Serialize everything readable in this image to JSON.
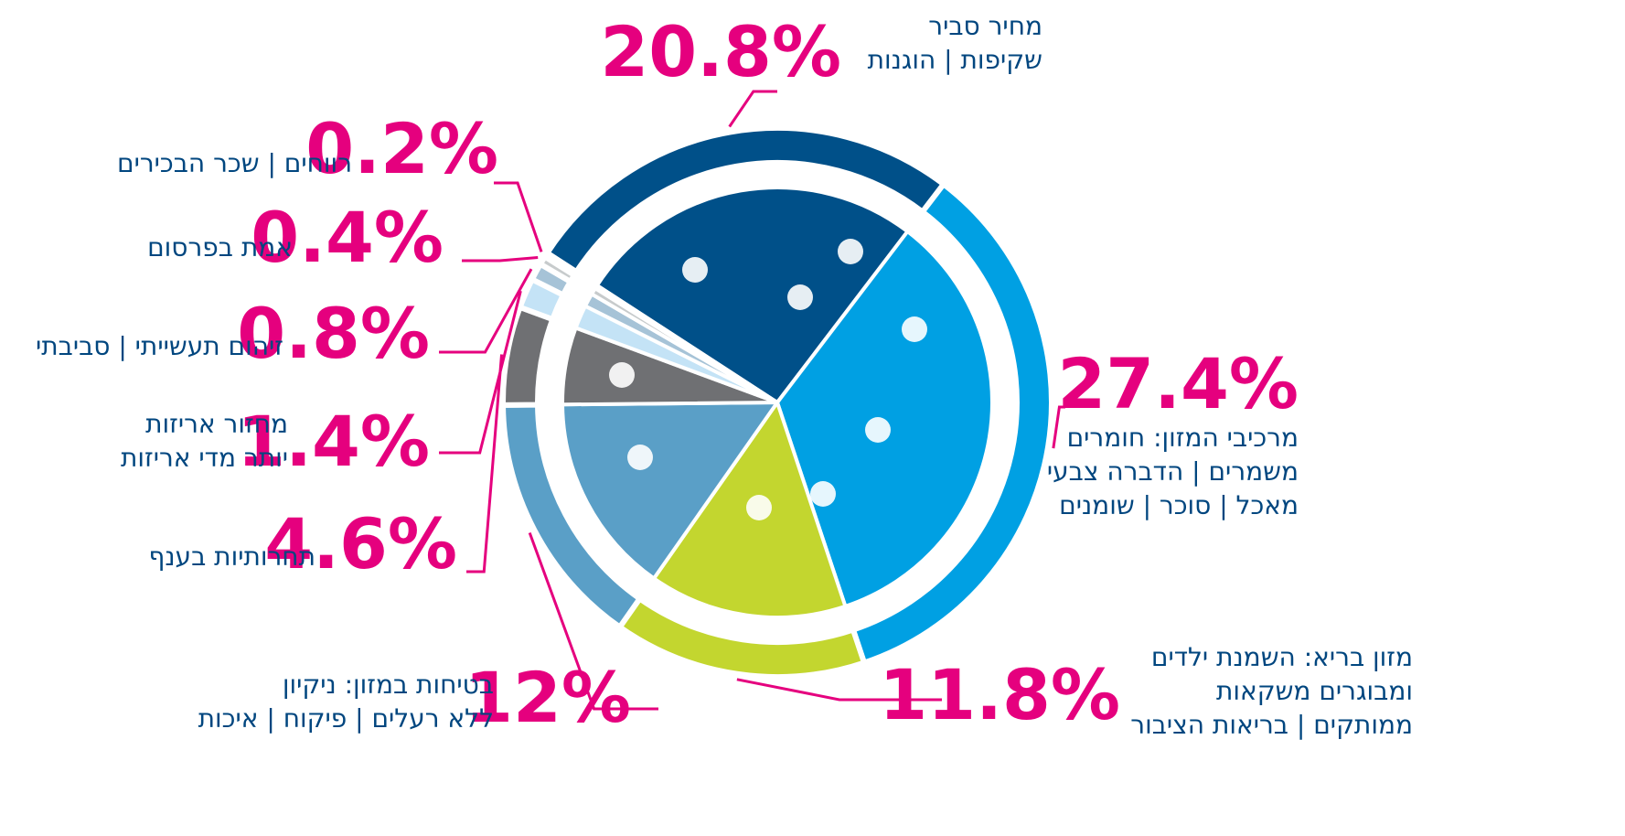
{
  "chart_data": {
    "type": "pie",
    "categories": [
      [
        "מחיר סביר",
        "שקיפות | הוגנות"
      ],
      [
        "מרכיבי המזון: חומרים",
        "משמרים | הדברה צבעי",
        "מאכל | סוכר | שומנים"
      ],
      [
        "מזון בריא: השמנת ילדים",
        "ומבוגרים  משקאות",
        "ממותקים | בריאות הציבור"
      ],
      [
        "בטיחות במזון:  ניקיון",
        "ללא רעלים | פיקוח | איכות"
      ],
      [
        "תחרותיות בענף"
      ],
      [
        "מחזור אריזות",
        "יותר מדי אריזות"
      ],
      [
        "זיהום תעשייתי | סביבתי"
      ],
      [
        "אמת בפרסום"
      ],
      [
        "רווחים | שכר הבכירים"
      ]
    ],
    "values": [
      20.8,
      27.4,
      11.8,
      12,
      4.6,
      1.4,
      0.8,
      0.4,
      0.2
    ],
    "value_labels": [
      "20.8%",
      "27.4%",
      "11.8%",
      "12%",
      "4.6%",
      "1.4%",
      "0.8%",
      "0.4%",
      "0.2%"
    ],
    "colors": [
      "#005089",
      "#00a0e3",
      "#c3d62f",
      "#5a9fc7",
      "#6f7073",
      "#c4e3f6",
      "#a6c3d7",
      "#c7cbcc",
      "#8aa1b4"
    ]
  }
}
